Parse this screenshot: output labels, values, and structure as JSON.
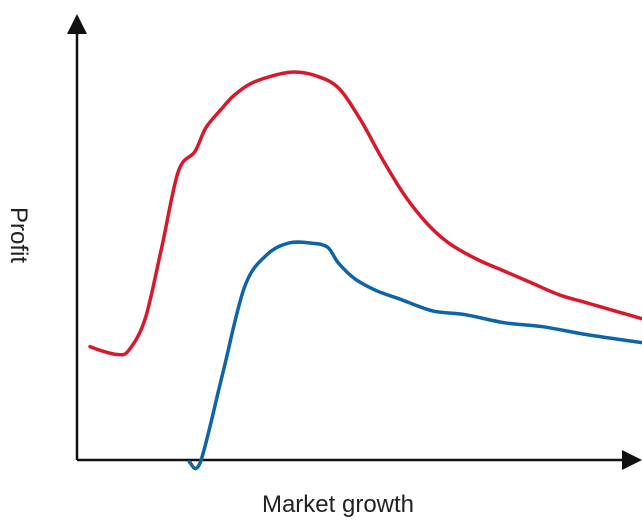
{
  "chart_data": {
    "type": "line",
    "title": "",
    "xlabel": "Market growth",
    "ylabel": "Profit",
    "xlim": [
      0,
      100
    ],
    "ylim": [
      0,
      100
    ],
    "grid": false,
    "legend": "none",
    "ticks": "none",
    "series": [
      {
        "color": "#d7192b",
        "x": [
          0,
          2,
          5,
          7,
          10,
          13,
          16,
          19,
          21,
          24,
          26,
          29,
          33,
          37,
          41,
          45,
          49,
          53,
          57,
          61,
          65,
          70,
          75,
          80,
          85,
          90,
          95,
          100
        ],
        "y": [
          29,
          28,
          27,
          28,
          36,
          54,
          73,
          78,
          84,
          89,
          92,
          95,
          97,
          98,
          97,
          94,
          86,
          76,
          67,
          60,
          55,
          51,
          48,
          45,
          42,
          40,
          38,
          36
        ]
      },
      {
        "color": "#0e64a8",
        "x": [
          18,
          20,
          24,
          28,
          32,
          36,
          40,
          43,
          45,
          48,
          52,
          56,
          62,
          68,
          75,
          82,
          90,
          100
        ],
        "y": [
          0,
          0,
          22,
          44,
          52,
          55,
          55,
          54,
          50,
          46,
          43,
          41,
          38,
          37,
          35,
          34,
          32,
          30
        ]
      }
    ]
  }
}
